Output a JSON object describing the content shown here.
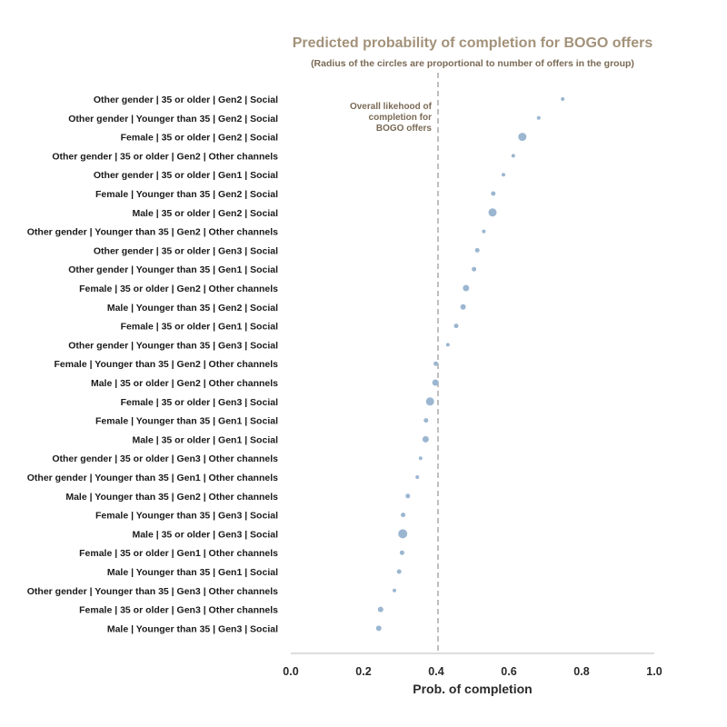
{
  "chart_data": {
    "type": "scatter",
    "title": "Predicted probability of completion for BOGO offers",
    "subtitle": "(Radius of the circles are proportional to number of offers in the group)",
    "xlabel": "Prob. of completion",
    "ylabel": "",
    "xlim": [
      0.0,
      1.0
    ],
    "xticks": [
      "0.0",
      "0.2",
      "0.4",
      "0.6",
      "0.8",
      "1.0"
    ],
    "grid": false,
    "reference_line": {
      "value": 0.405,
      "label": [
        "Overall likehood of",
        "completion for",
        "BOGO offers"
      ]
    },
    "colors": {
      "points": "#9bb6d0",
      "reference_line": "#aaaaaa",
      "title": "#a3927a",
      "axis": "#bbbbbb"
    },
    "categories": [
      "Other gender | 35 or older | Gen2 | Social",
      "Other gender | Younger than 35 | Gen2 | Social",
      "Female | 35 or older | Gen2 | Social",
      "Other gender | 35 or older | Gen2 | Other channels",
      "Other gender | 35 or older | Gen1 | Social",
      "Female | Younger than 35 | Gen2 | Social",
      "Male | 35 or older | Gen2 | Social",
      "Other gender | Younger than 35 | Gen2 | Other channels",
      "Other gender | 35 or older | Gen3 | Social",
      "Other gender | Younger than 35 | Gen1 | Social",
      "Female | 35 or older | Gen2 | Other channels",
      "Male | Younger than 35 | Gen2 | Social",
      "Female | 35 or older | Gen1 | Social",
      "Other gender | Younger than 35 | Gen3 | Social",
      "Female | Younger than 35 | Gen2 | Other channels",
      "Male | 35 or older | Gen2 | Other channels",
      "Female | 35 or older | Gen3 | Social",
      "Female | Younger than 35 | Gen1 | Social",
      "Male | 35 or older | Gen1 | Social",
      "Other gender | 35 or older | Gen3 | Other channels",
      "Other gender | Younger than 35 | Gen1 | Other channels",
      "Male | Younger than 35 | Gen2 | Other channels",
      "Female | Younger than 35 | Gen3 | Social",
      "Male | 35 or older | Gen3 | Social",
      "Female | 35 or older | Gen1 | Other channels",
      "Male | Younger than 35 | Gen1 | Social",
      "Other gender | Younger than 35 | Gen3 | Other channels",
      "Female | 35 or older | Gen3 | Other channels",
      "Male | Younger than 35 | Gen3 | Social"
    ],
    "values": [
      0.748,
      0.682,
      0.637,
      0.612,
      0.585,
      0.557,
      0.555,
      0.531,
      0.513,
      0.504,
      0.482,
      0.474,
      0.455,
      0.432,
      0.399,
      0.398,
      0.383,
      0.372,
      0.371,
      0.357,
      0.348,
      0.322,
      0.309,
      0.308,
      0.306,
      0.298,
      0.285,
      0.247,
      0.242
    ],
    "sizes": [
      2,
      2,
      4.5,
      2,
      2,
      2.5,
      4.5,
      2,
      2.5,
      2.5,
      3.5,
      3,
      2.5,
      2,
      2.5,
      3.5,
      4.5,
      2.5,
      3.5,
      2,
      2,
      2.5,
      2.5,
      5,
      2.5,
      2.5,
      2,
      3,
      3
    ]
  }
}
